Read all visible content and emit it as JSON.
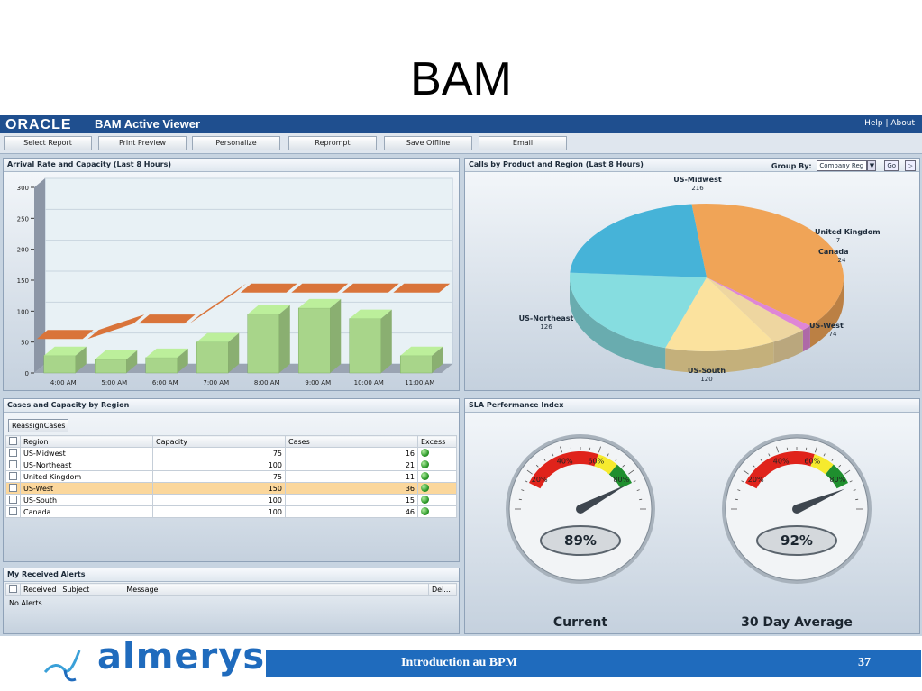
{
  "slide": {
    "title": "BAM",
    "footer_text": "Introduction au BPM",
    "page_number": "37",
    "brand": "almerys",
    "brand_color": "#1f6bbd"
  },
  "app": {
    "logo": "ORACLE",
    "title": "BAM Active Viewer",
    "help": "Help",
    "separator": "|",
    "about": "About",
    "toolbar": [
      "Select Report",
      "Print Preview",
      "Personalize",
      "Reprompt",
      "Save Offline",
      "Email"
    ]
  },
  "arrival_panel": {
    "title": "Arrival Rate and Capacity (Last 8 Hours)"
  },
  "calls_panel": {
    "title": "Calls by Product and Region (Last 8 Hours)",
    "group_by_label": "Group By:",
    "group_by_value": "Company Reg",
    "go": "Go"
  },
  "cases_panel": {
    "title": "Cases and Capacity by Region",
    "reassign": "ReassignCases",
    "columns": [
      "Region",
      "Capacity",
      "Cases",
      "Excess"
    ],
    "rows": [
      {
        "region": "US-Midwest",
        "capacity": "75",
        "cases": "16"
      },
      {
        "region": "US-Northeast",
        "capacity": "100",
        "cases": "21"
      },
      {
        "region": "United Kingdom",
        "capacity": "75",
        "cases": "11"
      },
      {
        "region": "US-West",
        "capacity": "150",
        "cases": "36"
      },
      {
        "region": "US-South",
        "capacity": "100",
        "cases": "15"
      },
      {
        "region": "Canada",
        "capacity": "100",
        "cases": "46"
      }
    ]
  },
  "alerts_panel": {
    "title": "My Received Alerts",
    "columns": [
      "Received",
      "Subject",
      "Message",
      "Del..."
    ],
    "empty": "No Alerts"
  },
  "sla_panel": {
    "title": "SLA Performance Index",
    "gauges": [
      {
        "label": "Current",
        "value": 89,
        "display": "89%"
      },
      {
        "label": "30 Day Average",
        "value": 92,
        "display": "92%"
      }
    ],
    "ticks": [
      "20%",
      "40%",
      "60%",
      "80%"
    ]
  },
  "chart_data": [
    {
      "type": "bar",
      "title": "Arrival Rate and Capacity (Last 8 Hours)",
      "categories": [
        "4:00 AM",
        "5:00 AM",
        "6:00 AM",
        "7:00 AM",
        "8:00 AM",
        "9:00 AM",
        "10:00 AM",
        "11:00 AM"
      ],
      "series": [
        {
          "values": [
            28,
            22,
            25,
            50,
            95,
            105,
            88,
            28
          ],
          "color": "#a8d58a"
        },
        {
          "values": [
            55,
            55,
            80,
            80,
            130,
            130,
            130,
            130
          ],
          "color": "#d9743a"
        }
      ],
      "yticks": [
        0,
        50,
        100,
        150,
        200,
        250,
        300
      ],
      "ylim": [
        0,
        300
      ]
    },
    {
      "type": "pie",
      "title": "Calls by Product and Region (Last 8 Hours)",
      "slices": [
        {
          "label": "US-Midwest",
          "value": 216,
          "color": "#f0a457"
        },
        {
          "label": "United Kingdom",
          "value": 7,
          "color": "#df86d6"
        },
        {
          "label": "Canada",
          "value": 24,
          "color": "#eed6a0"
        },
        {
          "label": "US-West",
          "value": 74,
          "color": "#fbe29e"
        },
        {
          "label": "US-South",
          "value": 120,
          "color": "#86dde0"
        },
        {
          "label": "US-Northeast",
          "value": 126,
          "color": "#46b3d8"
        }
      ]
    }
  ]
}
